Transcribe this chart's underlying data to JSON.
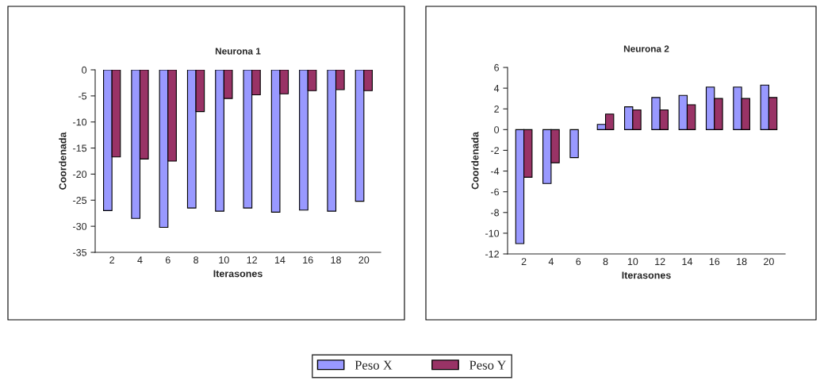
{
  "chart_data": [
    {
      "type": "bar",
      "title": "Neurona 1",
      "xlabel": "Iterasones",
      "ylabel": "Coordenada",
      "categories": [
        "2",
        "4",
        "6",
        "8",
        "10",
        "12",
        "14",
        "16",
        "18",
        "20"
      ],
      "series": [
        {
          "name": "Peso X",
          "color": "#9999ff",
          "values": [
            -27,
            -28.5,
            -30.2,
            -26.5,
            -27.1,
            -26.5,
            -27.3,
            -26.9,
            -27.1,
            -25.2
          ]
        },
        {
          "name": "Peso Y",
          "color": "#993366",
          "values": [
            -16.7,
            -17.1,
            -17.5,
            -8,
            -5.5,
            -4.8,
            -4.6,
            -4,
            -3.8,
            -4
          ]
        }
      ],
      "ylim": [
        -35,
        0
      ],
      "yticks": [
        -35,
        -30,
        -25,
        -20,
        -15,
        -10,
        -5,
        0
      ],
      "legend": "bottom"
    },
    {
      "type": "bar",
      "title": "Neurona 2",
      "xlabel": "Iterasones",
      "ylabel": "Coordenada",
      "categories": [
        "2",
        "4",
        "6",
        "8",
        "10",
        "12",
        "14",
        "16",
        "18",
        "20"
      ],
      "series": [
        {
          "name": "Peso X",
          "color": "#9999ff",
          "values": [
            -11,
            -5.2,
            -2.7,
            0.5,
            2.2,
            3.1,
            3.3,
            4.1,
            4.1,
            4.3
          ]
        },
        {
          "name": "Peso Y",
          "color": "#993366",
          "values": [
            -4.6,
            -3.2,
            null,
            1.5,
            1.9,
            1.9,
            2.4,
            3.0,
            3.0,
            3.1
          ]
        }
      ],
      "ylim": [
        -12,
        6
      ],
      "yticks": [
        -12,
        -10,
        -8,
        -6,
        -4,
        -2,
        0,
        2,
        4,
        6
      ],
      "legend": "bottom"
    }
  ]
}
